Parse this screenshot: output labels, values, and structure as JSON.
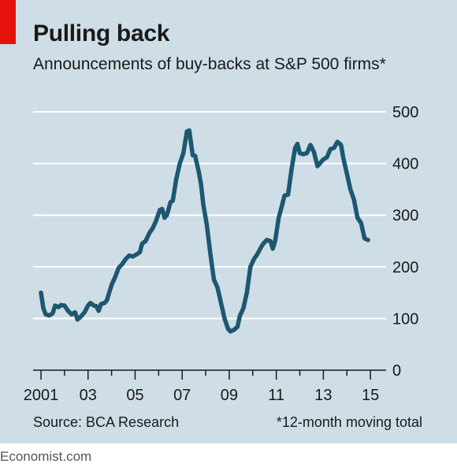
{
  "header": {
    "title": "Pulling back",
    "subtitle": "Announcements of buy-backs at S&P 500 firms*"
  },
  "footer": {
    "source": "Source: BCA Research",
    "note": "*12-month moving total",
    "brand": "Economist.com"
  },
  "colors": {
    "background": "#cfdde6",
    "line": "#1c5870",
    "accent": "#e3120b",
    "grid": "#ffffff"
  },
  "chart_data": {
    "type": "line",
    "title": "Pulling back",
    "subtitle": "Announcements of buy-backs at S&P 500 firms*",
    "xlabel": "",
    "ylabel": "",
    "xlim": [
      2001,
      2016
    ],
    "ylim": [
      0,
      500
    ],
    "yticks": [
      0,
      100,
      200,
      300,
      400,
      500
    ],
    "ytick_labels": [
      "0",
      "100",
      "200",
      "300",
      "400",
      "500"
    ],
    "xtick_labels": [
      {
        "x": 2001,
        "label": "2001"
      },
      {
        "x": 2003,
        "label": "03"
      },
      {
        "x": 2005,
        "label": "05"
      },
      {
        "x": 2007,
        "label": "07"
      },
      {
        "x": 2009,
        "label": "09"
      },
      {
        "x": 2011,
        "label": "11"
      },
      {
        "x": 2013,
        "label": "13"
      },
      {
        "x": 2015,
        "label": "15"
      }
    ],
    "y_axis_position": "right",
    "grid": true,
    "series": [
      {
        "values": [
          [
            2001.0,
            150
          ],
          [
            2001.1,
            120
          ],
          [
            2001.2,
            108
          ],
          [
            2001.35,
            106
          ],
          [
            2001.5,
            110
          ],
          [
            2001.6,
            125
          ],
          [
            2001.75,
            122
          ],
          [
            2001.85,
            126
          ],
          [
            2002.0,
            125
          ],
          [
            2002.15,
            115
          ],
          [
            2002.3,
            108
          ],
          [
            2002.45,
            112
          ],
          [
            2002.55,
            98
          ],
          [
            2002.7,
            104
          ],
          [
            2002.85,
            112
          ],
          [
            2003.0,
            125
          ],
          [
            2003.1,
            130
          ],
          [
            2003.25,
            125
          ],
          [
            2003.35,
            124
          ],
          [
            2003.45,
            115
          ],
          [
            2003.55,
            128
          ],
          [
            2003.7,
            130
          ],
          [
            2003.8,
            135
          ],
          [
            2003.9,
            150
          ],
          [
            2004.0,
            165
          ],
          [
            2004.15,
            180
          ],
          [
            2004.3,
            198
          ],
          [
            2004.45,
            205
          ],
          [
            2004.6,
            215
          ],
          [
            2004.75,
            222
          ],
          [
            2004.9,
            220
          ],
          [
            2005.05,
            224
          ],
          [
            2005.2,
            228
          ],
          [
            2005.3,
            245
          ],
          [
            2005.45,
            250
          ],
          [
            2005.6,
            265
          ],
          [
            2005.75,
            275
          ],
          [
            2005.9,
            290
          ],
          [
            2006.05,
            310
          ],
          [
            2006.15,
            312
          ],
          [
            2006.25,
            295
          ],
          [
            2006.35,
            300
          ],
          [
            2006.5,
            325
          ],
          [
            2006.6,
            328
          ],
          [
            2006.75,
            370
          ],
          [
            2006.9,
            400
          ],
          [
            2007.05,
            420
          ],
          [
            2007.2,
            462
          ],
          [
            2007.3,
            464
          ],
          [
            2007.45,
            416
          ],
          [
            2007.55,
            415
          ],
          [
            2007.7,
            385
          ],
          [
            2007.8,
            360
          ],
          [
            2007.9,
            320
          ],
          [
            2008.05,
            280
          ],
          [
            2008.2,
            225
          ],
          [
            2008.35,
            175
          ],
          [
            2008.5,
            160
          ],
          [
            2008.65,
            130
          ],
          [
            2008.8,
            100
          ],
          [
            2008.95,
            80
          ],
          [
            2009.05,
            75
          ],
          [
            2009.2,
            78
          ],
          [
            2009.35,
            84
          ],
          [
            2009.45,
            105
          ],
          [
            2009.6,
            120
          ],
          [
            2009.75,
            150
          ],
          [
            2009.9,
            200
          ],
          [
            2010.05,
            215
          ],
          [
            2010.2,
            225
          ],
          [
            2010.35,
            238
          ],
          [
            2010.45,
            245
          ],
          [
            2010.6,
            252
          ],
          [
            2010.75,
            250
          ],
          [
            2010.85,
            235
          ],
          [
            2010.95,
            250
          ],
          [
            2011.1,
            295
          ],
          [
            2011.25,
            320
          ],
          [
            2011.35,
            338
          ],
          [
            2011.5,
            340
          ],
          [
            2011.65,
            390
          ],
          [
            2011.8,
            430
          ],
          [
            2011.9,
            438
          ],
          [
            2012.0,
            420
          ],
          [
            2012.15,
            418
          ],
          [
            2012.3,
            420
          ],
          [
            2012.45,
            436
          ],
          [
            2012.6,
            422
          ],
          [
            2012.75,
            395
          ],
          [
            2012.85,
            400
          ],
          [
            2013.0,
            408
          ],
          [
            2013.15,
            412
          ],
          [
            2013.3,
            428
          ],
          [
            2013.45,
            430
          ],
          [
            2013.6,
            442
          ],
          [
            2013.75,
            436
          ],
          [
            2013.85,
            410
          ],
          [
            2014.0,
            380
          ],
          [
            2014.15,
            350
          ],
          [
            2014.3,
            330
          ],
          [
            2014.45,
            295
          ],
          [
            2014.6,
            285
          ],
          [
            2014.75,
            255
          ],
          [
            2014.9,
            252
          ]
        ]
      }
    ]
  }
}
